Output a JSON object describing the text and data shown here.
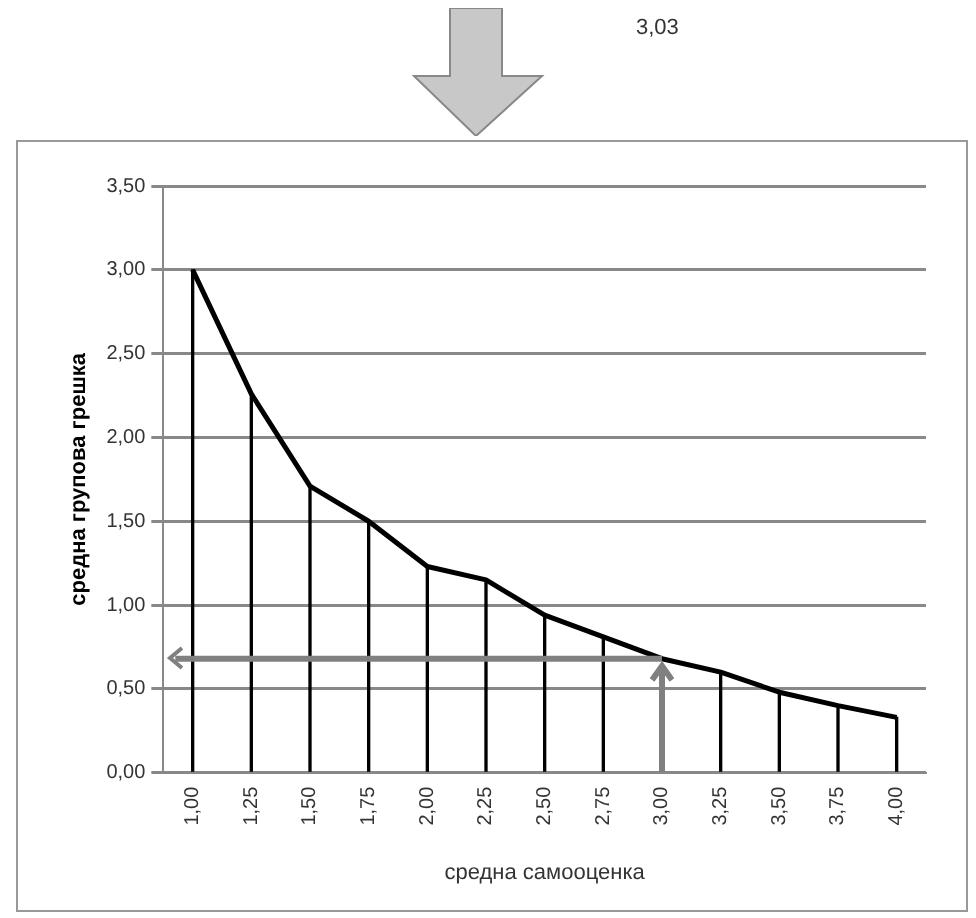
{
  "chart_data": {
    "type": "line",
    "xlabel": "средна самооценка",
    "ylabel": "средна групова грешка",
    "categories": [
      "1,00",
      "1,25",
      "1,50",
      "1,75",
      "2,00",
      "2,25",
      "2,50",
      "2,75",
      "3,00",
      "3,25",
      "3,50",
      "3,75",
      "4,00"
    ],
    "series": [
      {
        "color": "#000000",
        "values": [
          3.0,
          2.26,
          1.71,
          1.5,
          1.23,
          1.15,
          0.94,
          0.81,
          0.68,
          0.6,
          0.48,
          0.4,
          0.33
        ]
      },
      {
        "type": "bar",
        "color": "#000000",
        "values": [
          3.0,
          2.26,
          1.71,
          1.5,
          1.23,
          1.15,
          0.94,
          0.81,
          null,
          0.6,
          0.48,
          0.4,
          0.33
        ]
      }
    ],
    "ylim": [
      0,
      3.5
    ],
    "yticks": [
      {
        "value": 0,
        "label": "0,00"
      },
      {
        "value": 0.5,
        "label": "0,50"
      },
      {
        "value": 1,
        "label": "1,00"
      },
      {
        "value": 1.5,
        "label": "1,50"
      },
      {
        "value": 2,
        "label": "2,00"
      },
      {
        "value": 2.5,
        "label": "2,50"
      },
      {
        "value": 3,
        "label": "3,00"
      },
      {
        "value": 3.5,
        "label": "3,50"
      }
    ],
    "grid": "y",
    "legend": false,
    "marker": "none",
    "line_style": "solid",
    "ref_lines": [
      {
        "axis": "y",
        "value": 0.68,
        "color": "#808080"
      }
    ],
    "annotations": [
      "3,03"
    ]
  }
}
